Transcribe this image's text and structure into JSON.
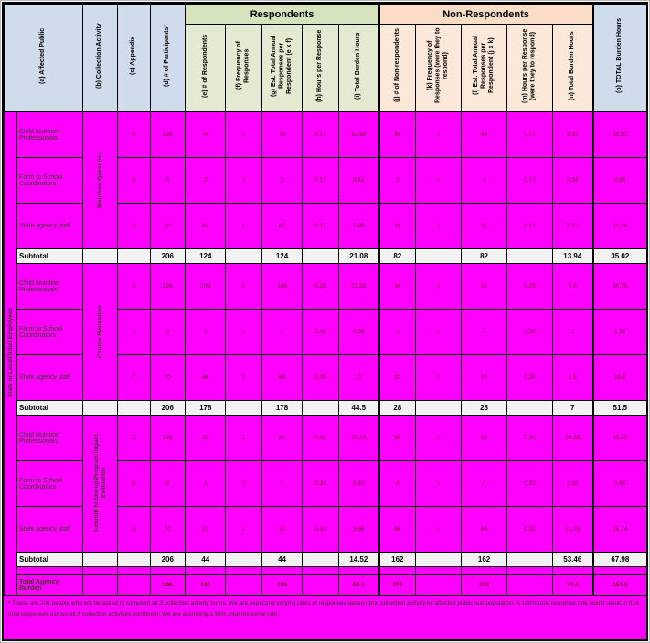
{
  "header": {
    "col_a": "(a) Affected Public",
    "col_b": "(b) Collection Activity",
    "col_c": "(c) Appendix",
    "col_d": "(d) # of Participants³",
    "group_respondents": "Respondents",
    "group_non_respondents": "Non-Respondents",
    "col_e": "(e) # of Respondents",
    "col_f": "(f) Frequency of Responses",
    "col_g": "(g) Est. Total Annual Responses per Respondent (e x f)",
    "col_h": "(h) Hours per Response",
    "col_i": "(i) Total Burden Hours",
    "col_j": "(j) # of Non-respondents",
    "col_k": "(k) Frequency of Responses (were they to respond)",
    "col_l": "(l) Est. Total Annual Responses per Respondent (j x k)",
    "col_m": "(m) Hours per Response (were they to respond)",
    "col_n": "(n) Total Burden Hours",
    "col_o": "(o) TOTAL Burden Hours"
  },
  "affected_public": "State or Local/Tribal Employees",
  "rows": [
    {
      "type": "data",
      "label": "Child Nutrition Professionals",
      "activity": {
        "label": "Welcome Questions",
        "span": 3
      },
      "cells": [
        "B",
        "128",
        "74",
        "1",
        "74",
        "0.17",
        "12.58",
        "49",
        "1",
        "49",
        "0.17",
        "8.33",
        "20.91"
      ]
    },
    {
      "type": "data",
      "label": "Farm to School Coordinators",
      "cells": [
        "B",
        "8",
        "3",
        "1",
        "3",
        "0.17",
        "0.51",
        "2",
        "1",
        "2",
        "0.17",
        "0.34",
        "0.85"
      ]
    },
    {
      "type": "data",
      "label": "State agency staff",
      "cells": [
        "B",
        "70",
        "47",
        "1",
        "47",
        "0.17",
        "7.99",
        "31",
        "1",
        "31",
        "0.17",
        "5.27",
        "13.26"
      ]
    },
    {
      "type": "subtotal",
      "label": "Subtotal",
      "cells": [
        "",
        "",
        "206",
        "124",
        "",
        "124",
        "",
        "21.08",
        "82",
        "",
        "82",
        "",
        "13.94",
        "35.02"
      ]
    },
    {
      "type": "data",
      "label": "Child Nutrition Professionals",
      "activity": {
        "label": "Course Evaluation",
        "span": 3
      },
      "cells": [
        "C",
        "128",
        "109",
        "1",
        "109",
        "0.25",
        "27.25",
        "14",
        "1",
        "14",
        "0.25",
        "3.5",
        "30.75"
      ]
    },
    {
      "type": "data",
      "label": "Farm to School Coordinators",
      "cells": [
        "C",
        "8",
        "1",
        "1",
        "1",
        "0.25",
        "0.25",
        "4",
        "1",
        "4",
        "0.25",
        "1",
        "1.25"
      ]
    },
    {
      "type": "data",
      "label": "State agency staff",
      "cells": [
        "C",
        "70",
        "68",
        "1",
        "68",
        "0.25",
        "17",
        "10",
        "1",
        "10",
        "0.25",
        "2.5",
        "19.5"
      ]
    },
    {
      "type": "subtotal",
      "label": "Subtotal",
      "cells": [
        "",
        "",
        "206",
        "178",
        "",
        "178",
        "",
        "44.5",
        "28",
        "",
        "28",
        "",
        "7",
        "51.5"
      ]
    },
    {
      "type": "data",
      "label": "Child Nutrition Professionals",
      "activity": {
        "label": "6-month follow-up Program Impact Evaluation",
        "span": 3
      },
      "cells": [
        "D",
        "128",
        "31",
        "1",
        "31",
        "0.33",
        "10.23",
        "92",
        "1",
        "92",
        "0.33",
        "30.36",
        "40.59"
      ]
    },
    {
      "type": "data",
      "label": "Farm to School Coordinators",
      "cells": [
        "D",
        "8",
        "1",
        "1",
        "1",
        "0.33",
        "0.33",
        "4",
        "1",
        "4",
        "0.33",
        "1.32",
        "1.65"
      ]
    },
    {
      "type": "data",
      "label": "State agency staff",
      "cells": [
        "D",
        "70",
        "12",
        "1",
        "12",
        "0.33",
        "3.96",
        "66",
        "1",
        "66",
        "0.33",
        "21.78",
        "25.74"
      ]
    },
    {
      "type": "subtotal",
      "label": "Subtotal",
      "cells": [
        "",
        "",
        "206",
        "44",
        "",
        "44",
        "",
        "14.52",
        "162",
        "",
        "162",
        "",
        "53.46",
        "67.98"
      ]
    },
    {
      "type": "gap",
      "label": "",
      "cells": [
        "",
        "",
        "",
        "",
        "",
        "",
        "",
        "",
        "",
        "",
        "",
        "",
        "",
        ""
      ]
    },
    {
      "type": "total",
      "label": "Total Agency Burden",
      "cells": [
        "",
        "",
        "206",
        "346",
        "",
        "346",
        "",
        "80.1",
        "272",
        "",
        "272",
        "",
        "74.4",
        "154.5"
      ]
    }
  ],
  "footnote": "³ These are 206 people who will be asked to complete all 3 collection activity forms.  We are expecting varying rates of responses based upon collection activity by affected public sub population.  A 100% total response rate would result in 618 total responses across all 3 collection activities combined.  We are assuming a 56% total response rate.",
  "colors": {
    "magenta": "#FF00FF",
    "header_blue": "#CFDCEC",
    "respondents_band": "#D6E3BC",
    "respondents_cell": "#E2EBD2",
    "non_respondents_band": "#FBDCC5",
    "non_respondents_cell": "#FCE8D9",
    "subtotal_bg": "#F2F2F2",
    "number_text": "#6E1B1B",
    "label_text": "#3C3C26"
  }
}
